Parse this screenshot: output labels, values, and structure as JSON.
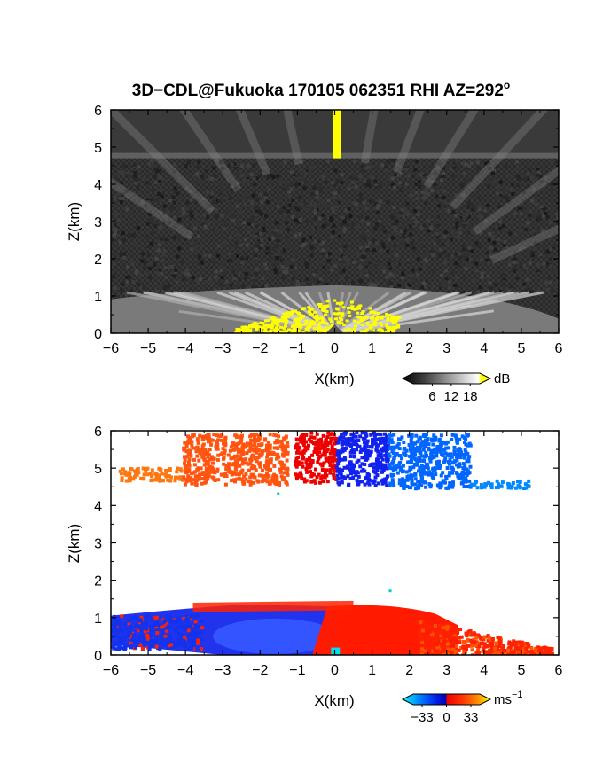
{
  "title": {
    "main": "3D−CDL@Fukuoka 170105 062351 RHI AZ=292",
    "superscript": "o"
  },
  "chart_data": [
    {
      "type": "heatmap",
      "panel": "reflectivity",
      "xlabel": "X(km)",
      "ylabel": "Z(km)",
      "xlim": [
        -6,
        6
      ],
      "ylim": [
        0,
        6
      ],
      "xticks": [
        "−6",
        "−5",
        "−4",
        "−3",
        "−2",
        "−1",
        "0",
        "1",
        "2",
        "3",
        "4",
        "5",
        "6"
      ],
      "yticks": [
        "0",
        "1",
        "2",
        "3",
        "4",
        "5",
        "6"
      ],
      "colorbar": {
        "unit": "dB",
        "ticks": [
          "6",
          "12",
          "18"
        ],
        "tick_values": [
          6,
          12,
          18
        ],
        "range": [
          0,
          21
        ],
        "colors": [
          "#000000",
          "#404040",
          "#808080",
          "#c0c0c0",
          "#ffffff",
          "#ffff00"
        ]
      },
      "features": {
        "noise_floor": "dark grey speckle 1.2-4.6 km",
        "lower_echo_top_km": 1.1,
        "upper_layer_km": [
          4.7,
          6.0
        ],
        "strong_core_x_km": [
          -2.7,
          1.7
        ],
        "vertical_beam_x_km": 0.05
      }
    },
    {
      "type": "heatmap",
      "panel": "doppler_velocity",
      "xlabel": "X(km)",
      "ylabel": "Z(km)",
      "xlim": [
        -6,
        6
      ],
      "ylim": [
        0,
        6
      ],
      "xticks": [
        "−6",
        "−5",
        "−4",
        "−3",
        "−2",
        "−1",
        "0",
        "1",
        "2",
        "3",
        "4",
        "5",
        "6"
      ],
      "yticks": [
        "0",
        "1",
        "2",
        "3",
        "4",
        "5",
        "6"
      ],
      "colorbar": {
        "unit": "ms",
        "unit_exponent": "−1",
        "ticks": [
          "−33",
          "0",
          "33"
        ],
        "tick_values": [
          -33,
          0,
          33
        ],
        "range": [
          -45,
          45
        ],
        "colors": [
          "#00ffff",
          "#0044ff",
          "#0000cc",
          "#ff2200",
          "#ff6600",
          "#ffff00"
        ]
      },
      "features": {
        "low_layer_top_km": 1.4,
        "low_layer_x_extent_km": [
          -6.0,
          5.8
        ],
        "negative_region_x_km": [
          -6.0,
          0.0
        ],
        "positive_region_x_km": [
          0.0,
          5.8
        ],
        "upper_layer_km": [
          4.5,
          6.0
        ]
      }
    }
  ]
}
